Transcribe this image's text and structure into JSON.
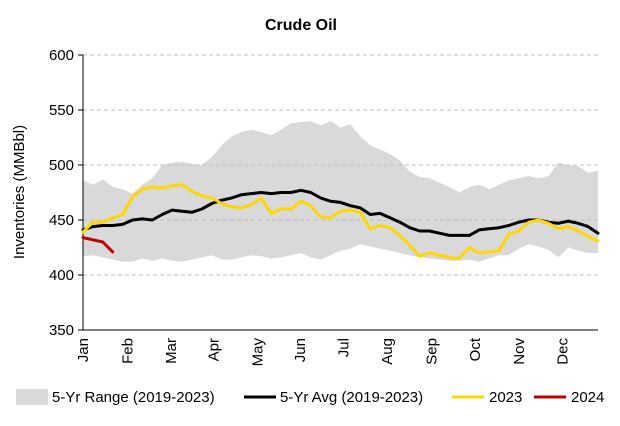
{
  "chart_data": {
    "type": "line",
    "title": "Crude Oil",
    "ylabel": "Inventories (MMBbl)",
    "xlabel": "",
    "ylim": [
      350,
      600
    ],
    "yticks": [
      350,
      400,
      450,
      500,
      550,
      600
    ],
    "y_grid": true,
    "x_range_weeks": [
      1,
      53
    ],
    "month_ticks": [
      {
        "label": "Jan",
        "week": 1
      },
      {
        "label": "Feb",
        "week": 5.5
      },
      {
        "label": "Mar",
        "week": 9.9
      },
      {
        "label": "Apr",
        "week": 14.2
      },
      {
        "label": "May",
        "week": 18.6
      },
      {
        "label": "Jun",
        "week": 22.9
      },
      {
        "label": "Jul",
        "week": 27.3
      },
      {
        "label": "Aug",
        "week": 31.7
      },
      {
        "label": "Sep",
        "week": 36.2
      },
      {
        "label": "Oct",
        "week": 40.6
      },
      {
        "label": "Nov",
        "week": 45
      },
      {
        "label": "Dec",
        "week": 49.4
      }
    ],
    "x_weeks": [
      1,
      2,
      3,
      4,
      5,
      6,
      7,
      8,
      9,
      10,
      11,
      12,
      13,
      14,
      15,
      16,
      17,
      18,
      19,
      20,
      21,
      22,
      23,
      24,
      25,
      26,
      27,
      28,
      29,
      30,
      31,
      32,
      33,
      34,
      35,
      36,
      37,
      38,
      39,
      40,
      41,
      42,
      43,
      44,
      45,
      46,
      47,
      48,
      49,
      50,
      51,
      52,
      53
    ],
    "range": {
      "name": "5-Yr Range (2019-2023)",
      "color": "#d9d9d9",
      "high": [
        486,
        482,
        487,
        480,
        478,
        474,
        482,
        488,
        500,
        502,
        503,
        501,
        500,
        507,
        518,
        526,
        530,
        532,
        530,
        527,
        532,
        538,
        539,
        540,
        536,
        540,
        534,
        537,
        526,
        518,
        514,
        510,
        504,
        494,
        489,
        488,
        484,
        480,
        475,
        480,
        482,
        478,
        482,
        486,
        488,
        490,
        488,
        490,
        502,
        500,
        499,
        493,
        495
      ],
      "low": [
        417,
        418,
        416,
        414,
        412,
        412,
        415,
        413,
        415,
        413,
        412,
        414,
        416,
        418,
        414,
        414,
        416,
        418,
        417,
        415,
        416,
        418,
        420,
        416,
        414,
        418,
        422,
        424,
        428,
        426,
        424,
        422,
        420,
        418,
        416,
        415,
        414,
        413,
        413,
        414,
        412,
        415,
        418,
        418,
        424,
        428,
        426,
        423,
        416,
        425,
        422,
        420,
        420
      ]
    },
    "series": [
      {
        "name": "5-Yr Avg (2019-2023)",
        "color": "#000000",
        "values": [
          441,
          444,
          445,
          445,
          446,
          450,
          451,
          450,
          455,
          459,
          458,
          457,
          460,
          465,
          468,
          470,
          473,
          474,
          475,
          474,
          475,
          475,
          477,
          475,
          470,
          467,
          466,
          463,
          461,
          455,
          456,
          452,
          448,
          443,
          440,
          440,
          438,
          436,
          436,
          436,
          441,
          442,
          443,
          445,
          448,
          450,
          450,
          448,
          447,
          449,
          447,
          444,
          438
        ]
      },
      {
        "name": "2023",
        "color": "#ffd700",
        "values": [
          439,
          448,
          448,
          452,
          455,
          471,
          478,
          480,
          479,
          481,
          482,
          476,
          472,
          470,
          465,
          462,
          461,
          464,
          470,
          456,
          460,
          460,
          467,
          463,
          453,
          452,
          458,
          459,
          457,
          442,
          445,
          443,
          436,
          427,
          417,
          420,
          418,
          416,
          415,
          425,
          420,
          421,
          422,
          437,
          440,
          448,
          450,
          447,
          442,
          444,
          440,
          435,
          431
        ]
      },
      {
        "name": "2024",
        "color": "#c00000",
        "values": [
          434,
          432,
          430,
          421
        ]
      }
    ],
    "legend": {
      "placement": "bottom",
      "entries": [
        {
          "label": "5-Yr Range (2019-2023)",
          "kind": "area",
          "color": "#d9d9d9"
        },
        {
          "label": "5-Yr Avg (2019-2023)",
          "kind": "line",
          "color": "#000000"
        },
        {
          "label": "2023",
          "kind": "line",
          "color": "#ffd700"
        },
        {
          "label": "2024",
          "kind": "line",
          "color": "#c00000"
        }
      ]
    }
  }
}
